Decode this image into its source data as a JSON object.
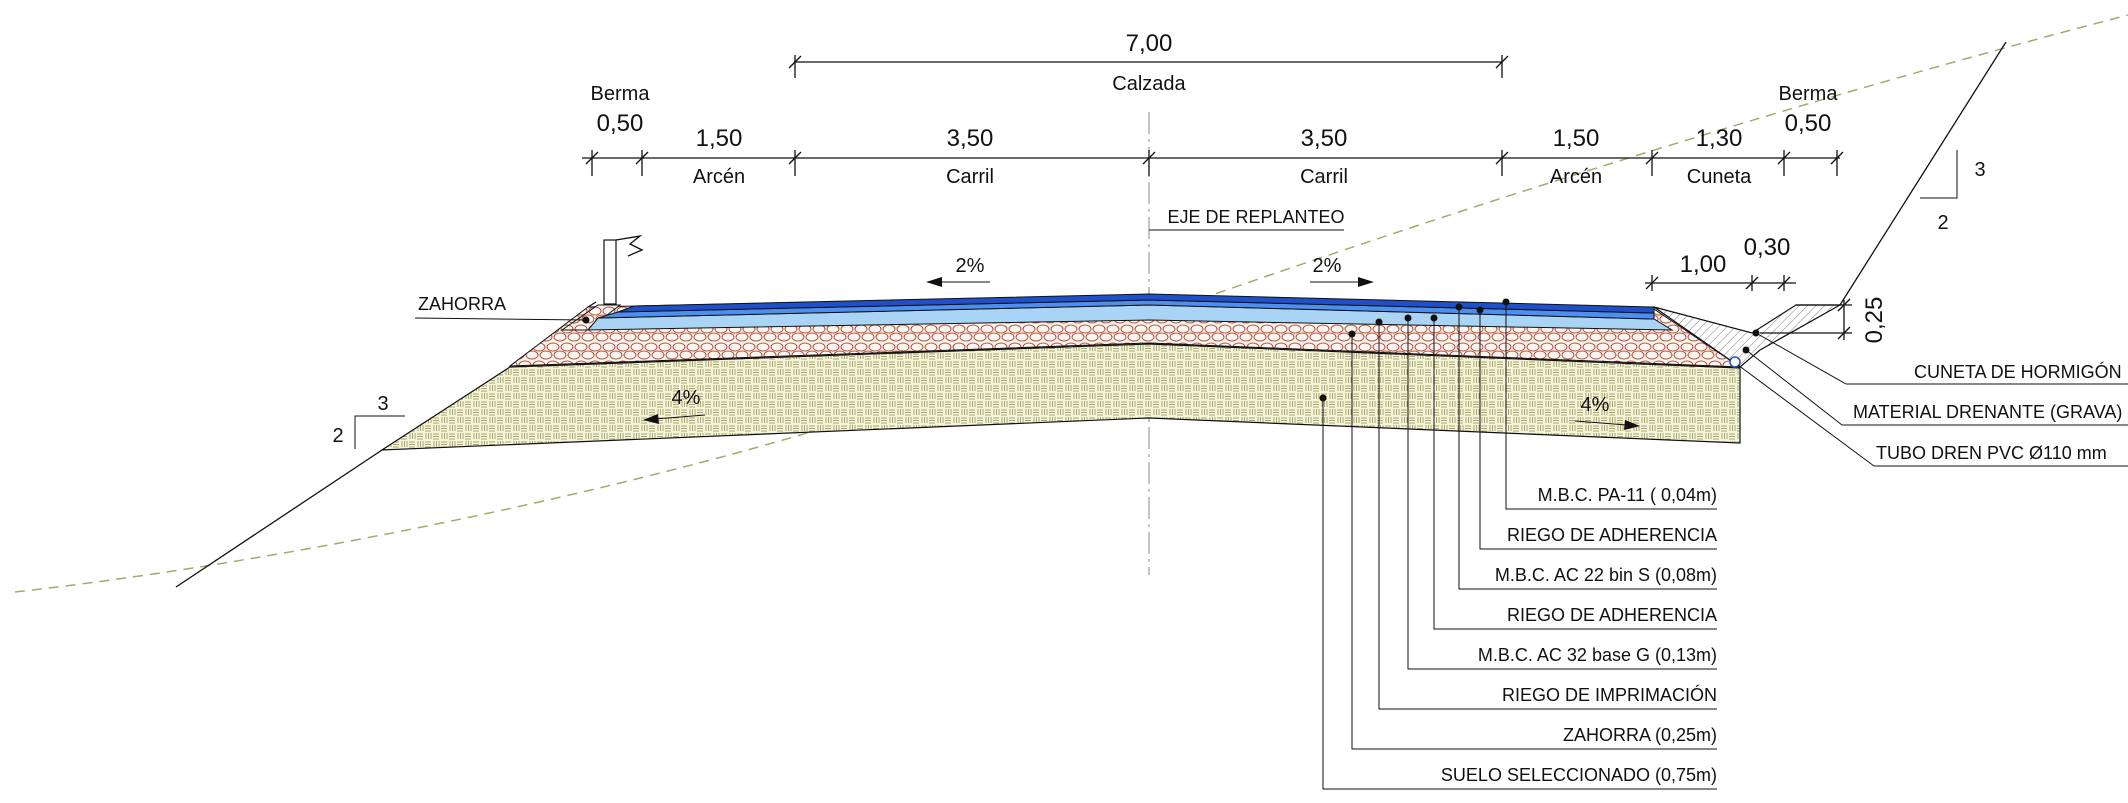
{
  "calzada": {
    "value": "7,00",
    "label": "Calzada"
  },
  "segments": [
    {
      "value": "0,50",
      "label": "Berma",
      "label_above": true
    },
    {
      "value": "1,50",
      "label": "Arcén"
    },
    {
      "value": "3,50",
      "label": "Carril"
    },
    {
      "value": "3,50",
      "label": "Carril"
    },
    {
      "value": "1,50",
      "label": "Arcén"
    },
    {
      "value": "1,30",
      "label": "Cuneta"
    },
    {
      "value": "0,50",
      "label": "Berma",
      "label_above": true
    }
  ],
  "eje": "EJE DE REPLANTEO",
  "slopes": {
    "left_surface": "2%",
    "right_surface": "2%",
    "left_base": "4%",
    "right_base": "4%"
  },
  "talud_left": {
    "v": "3",
    "h": "2"
  },
  "talud_right": {
    "v": "3",
    "h": "2"
  },
  "cuneta_dims": {
    "a": "1,00",
    "b": "0,30",
    "depth": "0,25"
  },
  "zahorra_label": "ZAHORRA",
  "right_labels": [
    "CUNETA DE HORMIGÓN",
    "MATERIAL DRENANTE (GRAVA)",
    "TUBO DREN PVC Ø110 mm"
  ],
  "layers": [
    "M.B.C. PA-11 ( 0,04m)",
    "RIEGO DE ADHERENCIA",
    "M.B.C. AC 22 bin S (0,08m)",
    "RIEGO DE ADHERENCIA",
    "M.B.C. AC 32 base G (0,13m)",
    "RIEGO DE IMPRIMACIÓN",
    "ZAHORRA (0,25m)",
    "SUELO SELECCIONADO (0,75m)"
  ],
  "colors": {
    "pa11": "#1f4fc9",
    "ac22": "#4d8ff0",
    "ac32": "#a9d4f5",
    "zahorra_stroke": "#b5523a",
    "suelo_fill": "#f5f3d6",
    "suelo_pattern": "#a8a86a",
    "terrain": "#a8a86a"
  }
}
